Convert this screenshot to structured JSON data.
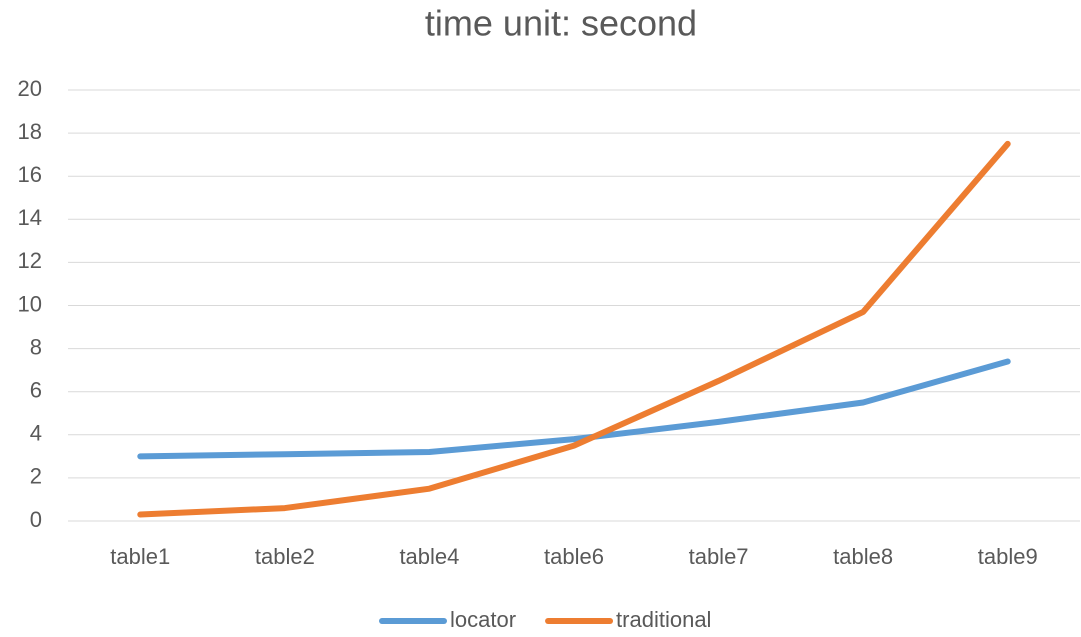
{
  "chart_data": {
    "type": "line",
    "title": "time unit: second",
    "categories": [
      "table1",
      "table2",
      "table4",
      "table6",
      "table7",
      "table8",
      "table9"
    ],
    "series": [
      {
        "name": "locator",
        "color": "#5b9bd5",
        "values": [
          3.0,
          3.1,
          3.2,
          3.8,
          4.6,
          5.5,
          7.4
        ]
      },
      {
        "name": "traditional",
        "color": "#ed7d31",
        "values": [
          0.3,
          0.6,
          1.5,
          3.5,
          6.5,
          9.7,
          17.5
        ]
      }
    ],
    "ylim": [
      0,
      20
    ],
    "yticks": [
      0,
      2,
      4,
      6,
      8,
      10,
      12,
      14,
      16,
      18,
      20
    ],
    "grid": true,
    "legend": "bottom"
  }
}
